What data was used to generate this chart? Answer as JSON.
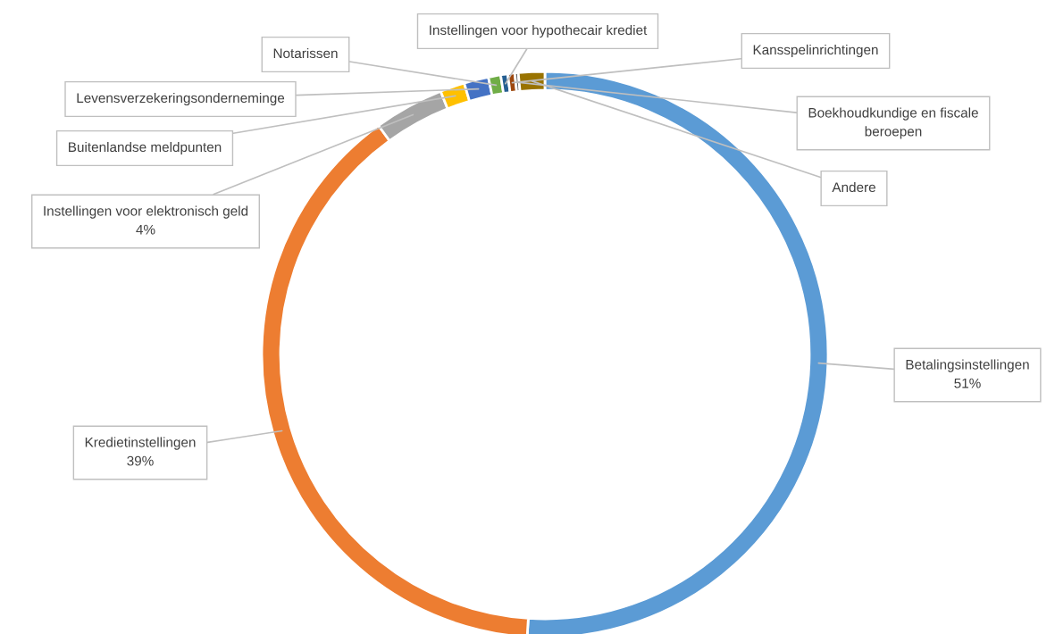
{
  "chart_data": {
    "type": "donut",
    "categories": [
      "Betalingsinstellingen",
      "Kredietinstellingen",
      "Instellingen voor elektronisch geld",
      "Buitenlandse meldpunten",
      "Levensverzekeringsonderneminge",
      "Notarissen",
      "Instellingen voor hypothecair krediet",
      "Kansspelinrichtingen",
      "Boekhoudkundige en fiscale\nberoepen",
      "Andere"
    ],
    "values": [
      51,
      39,
      4,
      1.4,
      1.4,
      0.7,
      0.4,
      0.4,
      0.2,
      1.5
    ],
    "value_labels": [
      "51%",
      "39%",
      "4%",
      null,
      null,
      null,
      null,
      null,
      null,
      null
    ],
    "colors": [
      "#5b9bd5",
      "#ed7d31",
      "#a5a5a5",
      "#ffc000",
      "#4472c4",
      "#70ad47",
      "#255e91",
      "#9e480e",
      "#636363",
      "#997300"
    ]
  }
}
